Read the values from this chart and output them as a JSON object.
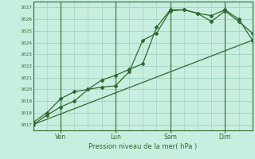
{
  "bg_color": "#c8eee0",
  "grid_color": "#a0d4c0",
  "line_color": "#2d6a2d",
  "ylabel_text": "Pression niveau de la mer( hPa )",
  "yticks": [
    1017,
    1018,
    1019,
    1020,
    1021,
    1022,
    1023,
    1024,
    1025,
    1026,
    1027
  ],
  "ylim": [
    1016.5,
    1027.5
  ],
  "xlim": [
    0,
    96
  ],
  "day_labels": [
    "Ven",
    "Lun",
    "Sam",
    "Dim"
  ],
  "day_positions": [
    12,
    36,
    60,
    84
  ],
  "vline_positions": [
    12,
    36,
    60,
    84
  ],
  "series1_x": [
    0,
    6,
    12,
    18,
    24,
    30,
    36,
    42,
    48,
    54,
    60,
    66,
    72,
    78,
    84,
    90,
    96
  ],
  "series1_y": [
    1017.0,
    1017.8,
    1018.5,
    1019.0,
    1020.0,
    1020.2,
    1020.3,
    1021.5,
    1024.2,
    1024.8,
    1026.7,
    1026.8,
    1026.5,
    1026.3,
    1026.8,
    1026.0,
    1024.2
  ],
  "series2_x": [
    0,
    6,
    12,
    18,
    24,
    30,
    36,
    42,
    48,
    54,
    60,
    66,
    72,
    78,
    84,
    90,
    96
  ],
  "series2_y": [
    1017.2,
    1018.0,
    1019.2,
    1019.8,
    1020.0,
    1020.8,
    1021.2,
    1021.7,
    1022.2,
    1025.3,
    1026.8,
    1026.8,
    1026.5,
    1025.8,
    1026.7,
    1025.8,
    1024.8
  ],
  "ref_line_x": [
    0,
    96
  ],
  "ref_line_y": [
    1017.0,
    1024.2
  ]
}
